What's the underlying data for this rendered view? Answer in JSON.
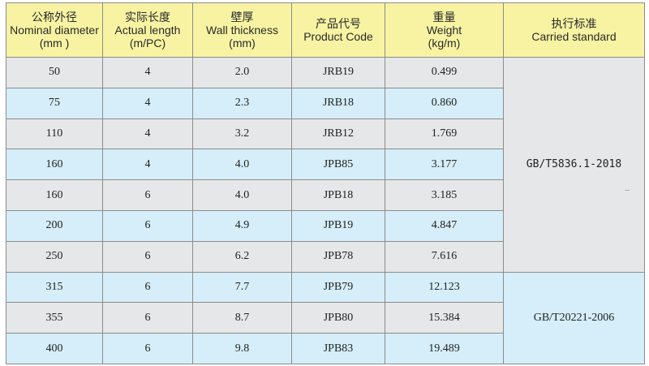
{
  "headers": [
    {
      "zh": "公称外径",
      "en1": "Nominal diameter",
      "en2": "(mm )"
    },
    {
      "zh": "实际长度",
      "en1": "Actual length",
      "en2": "(m/PC)"
    },
    {
      "zh": "壁厚",
      "en1": "Wall thickness",
      "en2": "(mm)"
    },
    {
      "zh": "产品代号",
      "en1": "Product Code",
      "en2": ""
    },
    {
      "zh": "重量",
      "en1": "Weight",
      "en2": "(kg/m)"
    },
    {
      "zh": "执行标准",
      "en1": "Carried standard",
      "en2": ""
    }
  ],
  "rows": [
    {
      "diameter": "50",
      "length": "4",
      "wall": "2.0",
      "code": "JRB19",
      "weight": "0.499"
    },
    {
      "diameter": "75",
      "length": "4",
      "wall": "2.3",
      "code": "JRB18",
      "weight": "0.860"
    },
    {
      "diameter": "110",
      "length": "4",
      "wall": "3.2",
      "code": "JRB12",
      "weight": "1.769"
    },
    {
      "diameter": "160",
      "length": "4",
      "wall": "4.0",
      "code": "JPB85",
      "weight": "3.177"
    },
    {
      "diameter": "160",
      "length": "6",
      "wall": "4.0",
      "code": "JPB18",
      "weight": "3.185"
    },
    {
      "diameter": "200",
      "length": "6",
      "wall": "4.9",
      "code": "JPB19",
      "weight": "4.847"
    },
    {
      "diameter": "250",
      "length": "6",
      "wall": "6.2",
      "code": "JPB78",
      "weight": "7.616"
    },
    {
      "diameter": "315",
      "length": "6",
      "wall": "7.7",
      "code": "JPB79",
      "weight": "12.123"
    },
    {
      "diameter": "355",
      "length": "6",
      "wall": "8.7",
      "code": "JPB80",
      "weight": "15.384"
    },
    {
      "diameter": "400",
      "length": "6",
      "wall": "9.8",
      "code": "JPB83",
      "weight": "19.489"
    }
  ],
  "standards": [
    "GB/T5836.1-2018",
    "GB/T20221-2006"
  ],
  "colors": {
    "header_bg": "#f7f3a2",
    "row_gray": "#e6e7e9",
    "row_blue": "#d5eef9",
    "border": "#8c8c8c"
  }
}
